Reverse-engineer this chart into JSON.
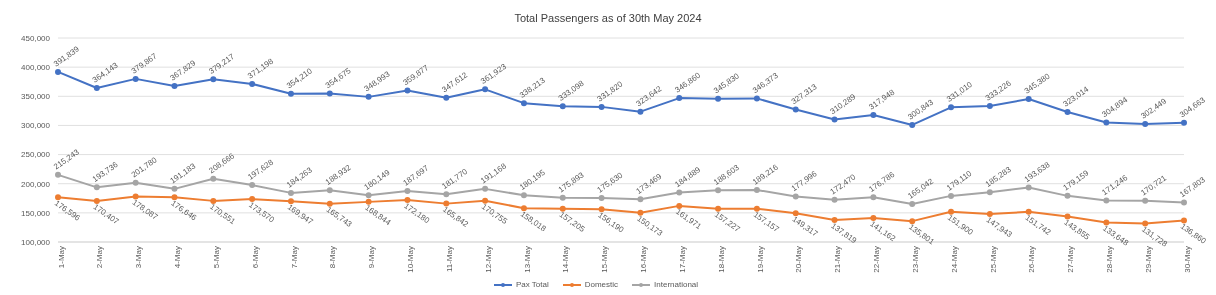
{
  "chart_data": {
    "type": "line",
    "title": "Total Passengers as of 30th May 2024",
    "categories": [
      "1-May",
      "2-May",
      "3-May",
      "4-May",
      "5-May",
      "6-May",
      "7-May",
      "8-May",
      "9-May",
      "10-May",
      "11-May",
      "12-May",
      "13-May",
      "14-May",
      "15-May",
      "16-May",
      "17-May",
      "18-May",
      "19-May",
      "20-May",
      "21-May",
      "22-May",
      "23-May",
      "24-May",
      "25-May",
      "26-May",
      "27-May",
      "28-May",
      "29-May",
      "30-May"
    ],
    "series": [
      {
        "name": "Pax Total",
        "color": "#4472c4",
        "values": [
          391839,
          364143,
          379867,
          367829,
          379217,
          371198,
          354210,
          354675,
          348993,
          359877,
          347612,
          361923,
          338213,
          333098,
          331820,
          323642,
          346860,
          345830,
          346373,
          327313,
          310289,
          317948,
          300843,
          331010,
          333226,
          345380,
          323014,
          304894,
          302449,
          304663
        ],
        "value_labels": [
          "391,839",
          "364,143",
          "379,867",
          "367,829",
          "379,217",
          "371,198",
          "354,210",
          "354,675",
          "348,993",
          "359,877",
          "347,612",
          "361,923",
          "338,213",
          "333,098",
          "331,820",
          "323,642",
          "346,860",
          "345,830",
          "346,373",
          "327,313",
          "310,289",
          "317,948",
          "300,843",
          "331,010",
          "333,226",
          "345,380",
          "323,014",
          "304,894",
          "302,449",
          "304,663"
        ]
      },
      {
        "name": "Domestic",
        "color": "#ed7d31",
        "values": [
          176596,
          170407,
          178087,
          176646,
          170551,
          173570,
          169947,
          165743,
          168844,
          172180,
          165842,
          170755,
          158018,
          157205,
          156190,
          150173,
          161971,
          157227,
          157157,
          149317,
          137819,
          141162,
          135801,
          151900,
          147943,
          151742,
          143855,
          133648,
          131728,
          136860
        ],
        "value_labels": [
          "176,596",
          "170,407",
          "178,087",
          "176,646",
          "170,551",
          "173,570",
          "169,947",
          "165,743",
          "168,844",
          "172,180",
          "165,842",
          "170,755",
          "158,018",
          "157,205",
          "156,190",
          "150,173",
          "161,971",
          "157,227",
          "157,157",
          "149,317",
          "137,819",
          "141,162",
          "135,801",
          "151,900",
          "147,943",
          "151,742",
          "143,855",
          "133,648",
          "131,728",
          "136,860"
        ]
      },
      {
        "name": "International",
        "color": "#a5a5a5",
        "values": [
          215243,
          193736,
          201780,
          191183,
          208666,
          197628,
          184263,
          188932,
          180149,
          187697,
          181770,
          191168,
          180195,
          175893,
          175630,
          173469,
          184889,
          188603,
          189216,
          177996,
          172470,
          176786,
          165042,
          179110,
          185283,
          193638,
          179159,
          171246,
          170721,
          167803
        ],
        "value_labels": [
          "215,243",
          "193,736",
          "201,780",
          "191,183",
          "208,666",
          "197,628",
          "184,263",
          "188,932",
          "180,149",
          "187,697",
          "181,770",
          "191,168",
          "180,195",
          "175,893",
          "175,630",
          "173,469",
          "184,889",
          "188,603",
          "189,216",
          "177,996",
          "172,470",
          "176,786",
          "165,042",
          "179,110",
          "185,283",
          "193,638",
          "179,159",
          "171,246",
          "170,721",
          "167,803"
        ]
      }
    ],
    "ylim": [
      100000,
      450000
    ],
    "yticks": [
      {
        "value": 100000,
        "label": "100,000"
      },
      {
        "value": 150000,
        "label": "150,000"
      },
      {
        "value": 200000,
        "label": "200,000"
      },
      {
        "value": 250000,
        "label": "250,000"
      },
      {
        "value": 300000,
        "label": "300,000"
      },
      {
        "value": 350000,
        "label": "350,000"
      },
      {
        "value": 400000,
        "label": "400,000"
      },
      {
        "value": 450000,
        "label": "450,000"
      }
    ],
    "grid": "y",
    "legend": "bottom",
    "marker": "circle",
    "line_style": "solid"
  }
}
